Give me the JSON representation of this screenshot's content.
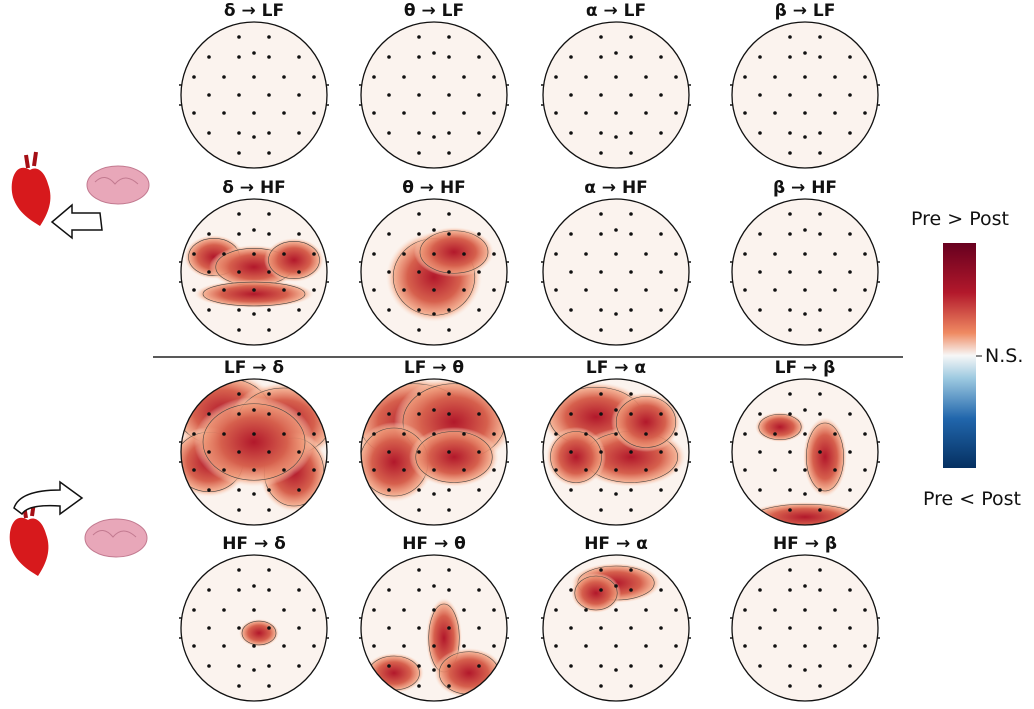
{
  "panels": [
    [
      "δ → LF",
      "θ → LF",
      "α → LF",
      "β → LF"
    ],
    [
      "δ → HF",
      "θ → HF",
      "α → HF",
      "β → HF"
    ],
    [
      "LF → δ",
      "LF → θ",
      "LF → α",
      "LF → β"
    ],
    [
      "HF → δ",
      "HF → θ",
      "HF → α",
      "HF → β"
    ]
  ],
  "colorbar": {
    "top_label": "Pre > Post",
    "mid_label": "N.S.",
    "bottom_label": "Pre < Post"
  }
}
